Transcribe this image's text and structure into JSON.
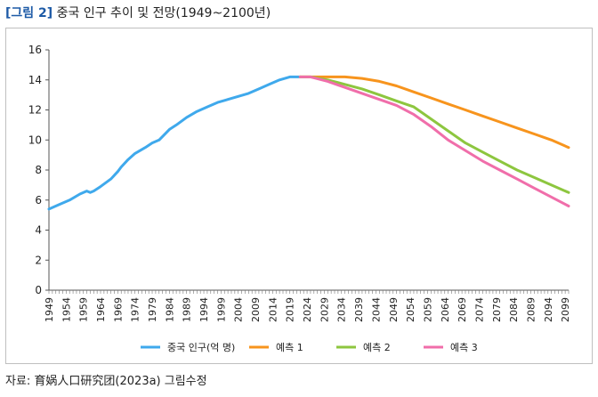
{
  "figure": {
    "tag": "[그림 2]",
    "title": "중국 인구 추이 및 전망(1949~2100년)"
  },
  "source": "자료: 育娲人口研究团(2023a) 그림수정",
  "chart_data": {
    "type": "line",
    "title": "",
    "xlabel": "",
    "ylabel": "",
    "xlim": [
      1949,
      2100
    ],
    "ylim": [
      0,
      16
    ],
    "yticks": [
      0,
      2,
      4,
      6,
      8,
      10,
      12,
      14,
      16
    ],
    "xtick_labels": [
      "1949",
      "1954",
      "1959",
      "1964",
      "1969",
      "1974",
      "1979",
      "1984",
      "1989",
      "1994",
      "1999",
      "2004",
      "2009",
      "2014",
      "2019",
      "2024",
      "2029",
      "2034",
      "2039",
      "2044",
      "2049",
      "2054",
      "2059",
      "2064",
      "2069",
      "2074",
      "2079",
      "2084",
      "2089",
      "2094",
      "2099"
    ],
    "grid": false,
    "legend_position": "bottom",
    "series": [
      {
        "name": "중국 인구(억 명)",
        "color": "#3fa9ec",
        "x": [
          1949,
          1952,
          1955,
          1958,
          1960,
          1961,
          1962,
          1964,
          1967,
          1969,
          1970,
          1972,
          1974,
          1977,
          1979,
          1981,
          1984,
          1986,
          1989,
          1992,
          1995,
          1998,
          2001,
          2004,
          2007,
          2010,
          2013,
          2016,
          2019,
          2021,
          2022
        ],
        "y": [
          5.4,
          5.7,
          6.0,
          6.4,
          6.6,
          6.5,
          6.6,
          6.9,
          7.4,
          7.9,
          8.2,
          8.7,
          9.1,
          9.5,
          9.8,
          10.0,
          10.7,
          11.0,
          11.5,
          11.9,
          12.2,
          12.5,
          12.7,
          12.9,
          13.1,
          13.4,
          13.7,
          14.0,
          14.2,
          14.2,
          14.2
        ]
      },
      {
        "name": "예측 1",
        "color": "#f7941d",
        "x": [
          2022,
          2025,
          2030,
          2035,
          2040,
          2045,
          2050,
          2055,
          2060,
          2065,
          2070,
          2075,
          2080,
          2085,
          2090,
          2095,
          2100
        ],
        "y": [
          14.2,
          14.2,
          14.2,
          14.2,
          14.1,
          13.9,
          13.6,
          13.2,
          12.8,
          12.4,
          12.0,
          11.6,
          11.2,
          10.8,
          10.4,
          10.0,
          9.5
        ]
      },
      {
        "name": "예측 2",
        "color": "#8dc63f",
        "x": [
          2022,
          2025,
          2030,
          2035,
          2040,
          2045,
          2050,
          2055,
          2060,
          2065,
          2070,
          2075,
          2080,
          2085,
          2090,
          2095,
          2100
        ],
        "y": [
          14.2,
          14.2,
          14.0,
          13.7,
          13.4,
          13.0,
          12.6,
          12.2,
          11.4,
          10.6,
          9.8,
          9.2,
          8.6,
          8.0,
          7.5,
          7.0,
          6.5
        ]
      },
      {
        "name": "예측 3",
        "color": "#f06eaa",
        "x": [
          2022,
          2025,
          2030,
          2035,
          2040,
          2045,
          2050,
          2055,
          2060,
          2065,
          2070,
          2075,
          2080,
          2085,
          2090,
          2095,
          2100
        ],
        "y": [
          14.2,
          14.2,
          13.9,
          13.5,
          13.1,
          12.7,
          12.3,
          11.7,
          10.9,
          10.0,
          9.3,
          8.6,
          8.0,
          7.4,
          6.8,
          6.2,
          5.6
        ]
      }
    ]
  }
}
